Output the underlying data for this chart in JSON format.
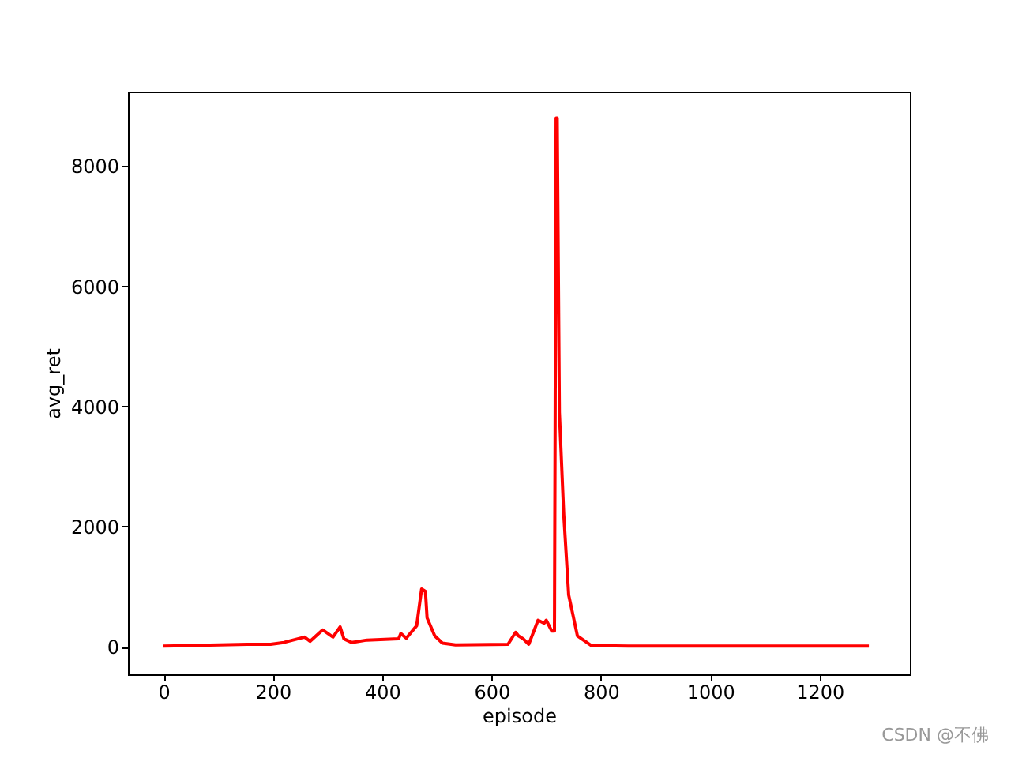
{
  "chart_data": {
    "type": "line",
    "xlabel": "episode",
    "ylabel": "avg_ret",
    "annotations": [
      "CSDN @不佛"
    ],
    "x": [
      0,
      60,
      153,
      196,
      220,
      258,
      268,
      291,
      310,
      323,
      330,
      344,
      372,
      430,
      434,
      444,
      463,
      472,
      479,
      482,
      496,
      510,
      534,
      630,
      644,
      649,
      658,
      668,
      685,
      696,
      700,
      710,
      715,
      718,
      720,
      724,
      732,
      741,
      757,
      782,
      850,
      1000,
      1290
    ],
    "series": [
      {
        "color": "#ff0000",
        "values": [
          10,
          20,
          40,
          40,
          70,
          160,
          90,
          280,
          160,
          330,
          130,
          70,
          110,
          130,
          220,
          140,
          350,
          960,
          920,
          480,
          180,
          60,
          30,
          40,
          240,
          180,
          130,
          40,
          440,
          390,
          440,
          260,
          260,
          8800,
          8800,
          3900,
          2200,
          860,
          180,
          20,
          10,
          10,
          10
        ]
      }
    ],
    "xlim": [
      -65,
      1365
    ],
    "ylim": [
      -460,
      9240
    ],
    "xticks": [
      0,
      200,
      400,
      600,
      800,
      1000,
      1200
    ],
    "yticks": [
      0,
      2000,
      4000,
      6000,
      8000
    ],
    "grid": false,
    "marker": "none",
    "line_style": "solid"
  }
}
